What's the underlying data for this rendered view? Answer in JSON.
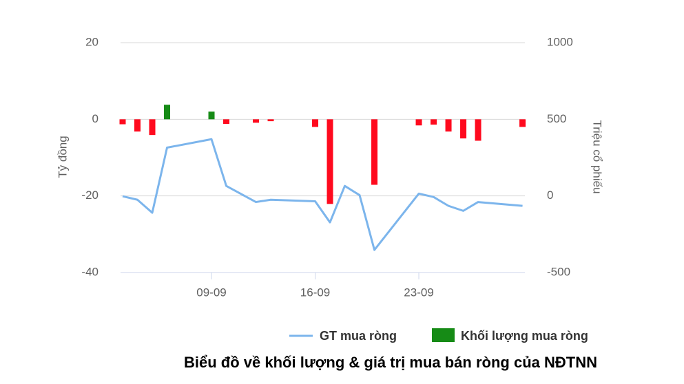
{
  "chart_data": {
    "type": "combo",
    "title": "Biểu đồ về khối lượng & giá trị mua bán ròng của NĐTNN",
    "y_label": "Tỷ đồng",
    "y2_label": "Triệu cổ phiếu",
    "x": [
      3,
      4,
      5,
      6,
      9,
      10,
      12,
      13,
      16,
      17,
      18,
      19,
      20,
      23,
      24,
      25,
      26,
      27,
      30
    ],
    "xlim": [
      2.86,
      30.16
    ],
    "xticks": [
      {
        "value": 9,
        "label": "09-09"
      },
      {
        "value": 16,
        "label": "16-09"
      },
      {
        "value": 23,
        "label": "23-09"
      }
    ],
    "ylim": [
      -40,
      20
    ],
    "yticks": [
      20,
      0,
      -20,
      -40
    ],
    "y2lim": [
      -500,
      1000
    ],
    "y2ticks": [
      1000,
      500,
      0,
      -500
    ],
    "grid": true,
    "series": [
      {
        "name": "GT mua ròng",
        "type": "line",
        "color": "#7cb5ec",
        "values": [
          -20.1,
          -21.0,
          -24.4,
          -7.4,
          -5.2,
          -17.4,
          -21.6,
          -21.0,
          -21.4,
          -26.9,
          -17.4,
          -19.8,
          -34.1,
          -19.4,
          -20.3,
          -22.6,
          -23.9,
          -21.6,
          -22.6
        ]
      },
      {
        "name": "Khối lượng mua ròng",
        "type": "bar",
        "color": "#168b16",
        "negative_color": "#ff0a1e",
        "values": [
          -1.3,
          -3.2,
          -4.1,
          3.8,
          2.0,
          -1.2,
          -0.9,
          -0.5,
          -2.0,
          -22.1,
          0,
          0,
          -17.1,
          -1.6,
          -1.4,
          -3.2,
          -5.0,
          -5.6,
          -2.0
        ]
      }
    ]
  }
}
